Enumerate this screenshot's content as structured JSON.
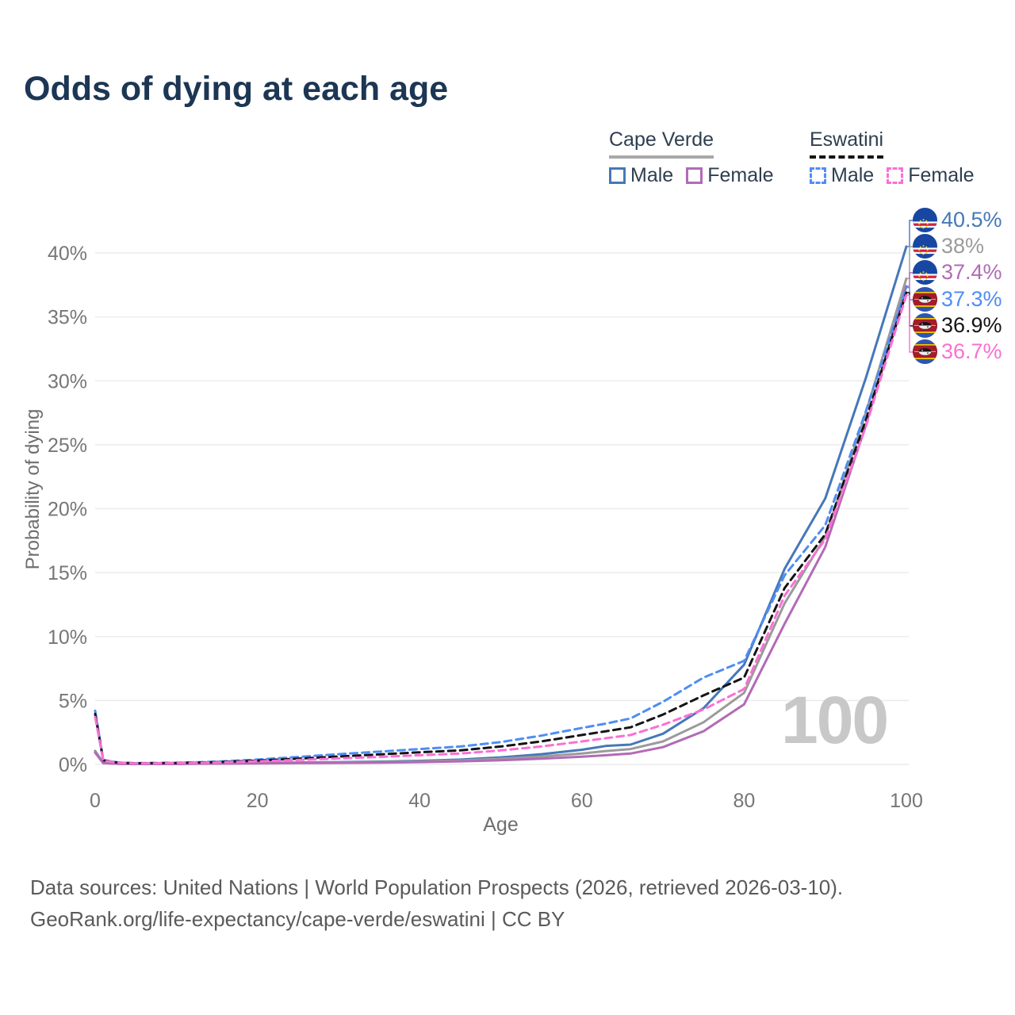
{
  "title": "Odds of dying at each age",
  "watermark_age": "100",
  "legend": {
    "groups": [
      {
        "id": "cape-verde",
        "label": "Cape Verde",
        "line_style": "solid",
        "underline_color": "#a8a8a8",
        "items": [
          {
            "label": "Male",
            "color": "#4678b8"
          },
          {
            "label": "Female",
            "color": "#b16bb5"
          }
        ]
      },
      {
        "id": "eswatini",
        "label": "Eswatini",
        "line_style": "dashed",
        "underline_color": "#141414",
        "items": [
          {
            "label": "Male",
            "color": "#4f8df5"
          },
          {
            "label": "Female",
            "color": "#fb6fd5"
          }
        ]
      }
    ]
  },
  "end_labels": [
    {
      "value": "40.5%",
      "color": "#4678b8",
      "flag": "cape-verde",
      "series": "Cape Verde Male"
    },
    {
      "value": "38%",
      "color": "#9b9b9b",
      "flag": "cape-verde",
      "series": "Cape Verde Both sexes"
    },
    {
      "value": "37.4%",
      "color": "#b16bb5",
      "flag": "cape-verde",
      "series": "Cape Verde Female"
    },
    {
      "value": "37.3%",
      "color": "#4f8df5",
      "flag": "eswatini",
      "series": "Eswatini Male"
    },
    {
      "value": "36.9%",
      "color": "#141414",
      "flag": "eswatini",
      "series": "Eswatini Both sexes"
    },
    {
      "value": "36.7%",
      "color": "#fb6fd5",
      "flag": "eswatini",
      "series": "Eswatini Female"
    }
  ],
  "footer": {
    "line1": "Data sources: United Nations | World Population Prospects (2026, retrieved 2026-03-10).",
    "line2": "GeoRank.org/life-expectancy/cape-verde/eswatini | CC BY"
  },
  "chart_data": {
    "type": "line",
    "title": "Odds of dying at each age",
    "x_label": "Age",
    "y_label": "Probability of dying",
    "x_range": [
      0,
      100
    ],
    "y_range_percent": [
      0,
      40
    ],
    "xticks": [
      0,
      20,
      40,
      60,
      80,
      100
    ],
    "yticks_percent": [
      0,
      5,
      10,
      15,
      20,
      25,
      30,
      35,
      40
    ],
    "grid": "horizontal-only",
    "legend_position": "top-right",
    "ages": [
      0,
      1,
      3,
      5,
      10,
      15,
      20,
      25,
      30,
      35,
      40,
      45,
      50,
      55,
      60,
      63,
      66,
      70,
      75,
      80,
      85,
      90,
      95,
      100
    ],
    "series": [
      {
        "id": "cape-verde-male",
        "name": "Cape Verde — Male",
        "color": "#4678b8",
        "dashed": false,
        "end_value_percent": 40.5,
        "values_percent": [
          1.05,
          0.12,
          0.06,
          0.05,
          0.05,
          0.09,
          0.13,
          0.15,
          0.18,
          0.22,
          0.28,
          0.38,
          0.55,
          0.8,
          1.15,
          1.45,
          1.55,
          2.4,
          4.4,
          7.8,
          15.3,
          20.8,
          30.2,
          40.5
        ]
      },
      {
        "id": "cape-verde-total",
        "name": "Cape Verde — Both sexes",
        "color": "#9b9b9b",
        "dashed": false,
        "end_value_percent": 38.0,
        "values_percent": [
          1.0,
          0.11,
          0.05,
          0.04,
          0.05,
          0.08,
          0.11,
          0.13,
          0.15,
          0.18,
          0.23,
          0.31,
          0.44,
          0.62,
          0.85,
          1.05,
          1.2,
          1.8,
          3.3,
          5.6,
          12.6,
          17.8,
          27.5,
          38.0
        ]
      },
      {
        "id": "cape-verde-female",
        "name": "Cape Verde — Female",
        "color": "#b16bb5",
        "dashed": false,
        "end_value_percent": 37.4,
        "values_percent": [
          0.92,
          0.1,
          0.05,
          0.04,
          0.04,
          0.06,
          0.08,
          0.1,
          0.12,
          0.14,
          0.18,
          0.24,
          0.33,
          0.45,
          0.6,
          0.72,
          0.85,
          1.35,
          2.6,
          4.7,
          11.0,
          17.0,
          26.5,
          37.4
        ]
      },
      {
        "id": "eswatini-male",
        "name": "Eswatini — Male",
        "color": "#4f8df5",
        "dashed": true,
        "end_value_percent": 37.3,
        "values_percent": [
          4.2,
          0.35,
          0.13,
          0.1,
          0.12,
          0.22,
          0.38,
          0.58,
          0.8,
          1.0,
          1.2,
          1.4,
          1.75,
          2.25,
          2.85,
          3.2,
          3.6,
          4.9,
          6.8,
          8.1,
          14.8,
          18.7,
          27.6,
          37.3
        ]
      },
      {
        "id": "eswatini-total",
        "name": "Eswatini — Both sexes",
        "color": "#141414",
        "dashed": true,
        "end_value_percent": 36.9,
        "values_percent": [
          3.95,
          0.32,
          0.12,
          0.09,
          0.11,
          0.18,
          0.3,
          0.45,
          0.62,
          0.78,
          0.95,
          1.1,
          1.4,
          1.8,
          2.3,
          2.6,
          2.9,
          3.9,
          5.4,
          6.8,
          13.8,
          18.0,
          26.9,
          36.9
        ]
      },
      {
        "id": "eswatini-female",
        "name": "Eswatini — Female",
        "color": "#fb6fd5",
        "dashed": true,
        "end_value_percent": 36.7,
        "values_percent": [
          3.7,
          0.3,
          0.11,
          0.08,
          0.1,
          0.15,
          0.24,
          0.35,
          0.47,
          0.58,
          0.72,
          0.85,
          1.1,
          1.4,
          1.8,
          2.05,
          2.3,
          3.1,
          4.3,
          5.9,
          13.2,
          17.6,
          26.4,
          36.7
        ]
      }
    ]
  }
}
